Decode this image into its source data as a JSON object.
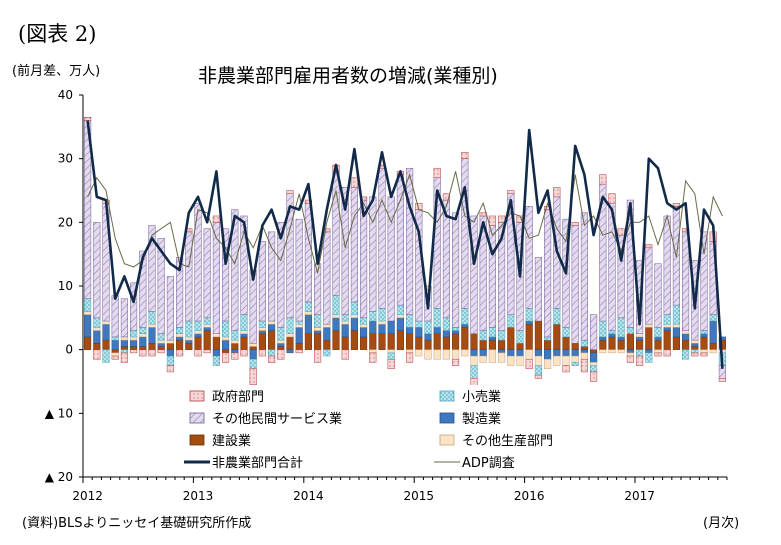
{
  "figure_label": "(図表 2)",
  "source_note": "(資料)BLSよりニッセイ基礎研究所作成",
  "colors": {
    "government": "#f6d7d7",
    "retail": "#b7e4ec",
    "other_services": "#d9cbe8",
    "manufacturing": "#3f78bf",
    "construction": "#a64b12",
    "other_goods": "#fbe3c8",
    "total_line": "#122a4a",
    "adp_line": "#6a6a4a"
  },
  "chart_data": {
    "type": "bar",
    "title": "非農業部門雇用者数の増減(業種別)",
    "ylabel": "(前月差、万人)",
    "xlabel": "(月次)",
    "ylim": [
      -20,
      40
    ],
    "yticks": [
      40,
      30,
      20,
      10,
      0,
      -10,
      -20
    ],
    "ytick_labels": [
      "40",
      "30",
      "20",
      "10",
      "0",
      "▲ 10",
      "▲ 20"
    ],
    "x_tick_labels": [
      "2012",
      "2013",
      "2014",
      "2015",
      "2016",
      "2017"
    ],
    "grid": false,
    "legend_placement": "bottom-center",
    "months": 70,
    "series": [
      {
        "name": "政府部門",
        "key": "government",
        "kind": "bar",
        "values": [
          0.5,
          -1.5,
          0.5,
          -0.5,
          -1.5,
          -0.5,
          -1.0,
          -1.0,
          -0.5,
          -1.0,
          -1.0,
          0.5,
          -1.0,
          -0.5,
          1.0,
          -1.5,
          -1.0,
          -1.0,
          -2.5,
          -1.0,
          -1.0,
          -1.5,
          0.5,
          -0.5,
          0.5,
          -2.0,
          0.5,
          1.0,
          -1.5,
          1.5,
          0.5,
          -1.5,
          0.5,
          -1.5,
          0.5,
          -1.5,
          1.0,
          0.5,
          1.5,
          1.0,
          -1.0,
          1.0,
          -1.5,
          0.5,
          1.5,
          1.0,
          0.5,
          1.0,
          -1.5,
          -0.5,
          0.5,
          1.5,
          -1.0,
          0.5,
          -2.0,
          -1.5,
          1.5,
          1.5,
          1.0,
          -1.0,
          -1.5,
          0.5,
          -0.5,
          -1.0,
          0.5,
          0.5,
          -0.5,
          -0.5,
          1.5,
          -0.5
        ]
      },
      {
        "name": "小売業",
        "key": "retail",
        "kind": "bar",
        "values": [
          2.0,
          1.5,
          -2.0,
          0.5,
          -0.5,
          1.0,
          1.0,
          2.0,
          1.0,
          -1.5,
          1.0,
          2.5,
          1.5,
          1.0,
          -1.5,
          2.5,
          1.5,
          2.5,
          -1.5,
          1.0,
          -1.0,
          2.0,
          2.5,
          0.5,
          1.5,
          2.0,
          -1.0,
          3.0,
          1.0,
          2.0,
          1.0,
          1.5,
          2.0,
          -1.0,
          1.5,
          2.0,
          1.0,
          2.0,
          3.0,
          2.0,
          0.5,
          2.5,
          -2.0,
          1.5,
          1.5,
          1.5,
          2.0,
          2.0,
          2.0,
          -1.5,
          0.5,
          2.5,
          1.5,
          -0.5,
          1.0,
          -1.0,
          2.5,
          0.5,
          3.0,
          1.0,
          -1.0,
          -1.5,
          1.5,
          1.5,
          3.0,
          -1.5,
          -0.5,
          0.5,
          1.0,
          -2.0
        ]
      },
      {
        "name": "その他民間サービス業",
        "key": "other_services",
        "kind": "bar",
        "values": [
          28.0,
          15.0,
          18.5,
          6.5,
          6.0,
          7.5,
          12.0,
          13.5,
          15.0,
          10.0,
          11.0,
          14.0,
          18.5,
          14.0,
          17.5,
          14.5,
          19.0,
          15.5,
          11.5,
          12.5,
          14.0,
          16.5,
          19.5,
          16.0,
          15.5,
          8.0,
          14.5,
          19.5,
          20.0,
          18.0,
          18.5,
          18.0,
          22.0,
          19.5,
          20.5,
          23.0,
          17.5,
          5.0,
          20.5,
          18.5,
          18.0,
          23.5,
          18.5,
          18.0,
          16.0,
          17.0,
          19.0,
          17.0,
          16.0,
          10.0,
          20.0,
          17.5,
          17.0,
          18.5,
          20.0,
          5.5,
          21.5,
          20.0,
          13.0,
          20.0,
          11.5,
          12.0,
          10.0,
          15.5,
          15.5,
          15.5,
          12.5,
          15.5,
          11.5,
          -2.0
        ]
      },
      {
        "name": "製造業",
        "key": "manufacturing",
        "kind": "bar",
        "values": [
          3.5,
          2.0,
          2.5,
          1.5,
          1.0,
          1.0,
          1.5,
          2.5,
          0.5,
          -1.0,
          0.5,
          0.5,
          0.5,
          0.5,
          -1.0,
          1.5,
          -0.5,
          0.5,
          -1.5,
          0.5,
          1.0,
          0.5,
          -0.5,
          2.5,
          3.0,
          0.5,
          2.0,
          2.0,
          2.0,
          2.0,
          1.5,
          2.0,
          1.5,
          2.0,
          2.0,
          1.0,
          1.5,
          1.0,
          1.0,
          1.0,
          0.5,
          0.5,
          -1.0,
          -1.0,
          0.5,
          -0.5,
          -1.0,
          -1.0,
          0.5,
          -1.0,
          -1.5,
          -1.0,
          -1.0,
          -1.0,
          -0.5,
          -1.5,
          0.5,
          0.5,
          0.5,
          -0.5,
          0.5,
          -0.5,
          0.5,
          0.5,
          1.5,
          1.0,
          0.5,
          0.5,
          3.5,
          0.5
        ]
      },
      {
        "name": "建設業",
        "key": "construction",
        "kind": "bar",
        "values": [
          2.0,
          1.0,
          1.5,
          -0.5,
          0.5,
          0.5,
          0.5,
          1.0,
          0.5,
          1.0,
          1.5,
          1.0,
          2.0,
          3.0,
          2.0,
          -0.5,
          1.0,
          2.0,
          0.5,
          2.5,
          3.0,
          0.5,
          2.0,
          1.0,
          2.5,
          2.5,
          1.5,
          3.0,
          2.0,
          3.0,
          2.0,
          2.5,
          2.5,
          2.5,
          3.0,
          2.5,
          2.0,
          1.5,
          2.5,
          2.0,
          2.5,
          3.5,
          2.5,
          1.5,
          1.5,
          1.5,
          3.5,
          1.0,
          4.0,
          4.5,
          1.5,
          4.0,
          2.0,
          1.0,
          0.5,
          -0.5,
          1.5,
          2.0,
          1.5,
          2.5,
          1.5,
          3.5,
          1.5,
          3.0,
          2.0,
          1.5,
          0.5,
          2.0,
          1.0,
          1.5
        ]
      },
      {
        "name": "その他生産部門",
        "key": "other_goods",
        "kind": "bar",
        "values": [
          0.5,
          0.5,
          0.5,
          -0.5,
          0.5,
          0.5,
          0.5,
          0.5,
          0.5,
          0.5,
          0.5,
          0.5,
          0.5,
          0.5,
          0.5,
          0.5,
          0.5,
          0.5,
          0.5,
          0.5,
          0.5,
          0.5,
          0.5,
          0.5,
          0.5,
          0.5,
          0.5,
          0.5,
          0.5,
          0.5,
          0.5,
          -0.5,
          0.5,
          -0.5,
          0.5,
          -0.5,
          -1.0,
          -1.5,
          -1.5,
          -1.5,
          -1.5,
          -1.0,
          -1.5,
          -1.0,
          -2.0,
          -1.5,
          -1.5,
          -1.5,
          -1.5,
          -1.5,
          -1.5,
          -1.5,
          -1.5,
          -1.0,
          -1.0,
          -0.5,
          -0.5,
          -0.5,
          -0.5,
          -0.5,
          0.5,
          0.5,
          -0.5,
          0.5,
          0.5,
          0.5,
          0.5,
          -0.5,
          -0.5,
          -0.5
        ]
      },
      {
        "name": "非農業部門合計",
        "key": "total_line",
        "kind": "line",
        "values": [
          36.0,
          24.0,
          23.5,
          8.0,
          11.5,
          7.5,
          14.5,
          17.5,
          15.5,
          13.5,
          12.5,
          21.5,
          24.0,
          20.0,
          28.0,
          13.5,
          21.0,
          20.0,
          11.0,
          19.5,
          22.0,
          17.5,
          22.5,
          22.0,
          26.0,
          13.5,
          22.0,
          29.0,
          22.0,
          31.5,
          21.0,
          23.5,
          31.0,
          24.0,
          28.0,
          22.5,
          18.5,
          6.5,
          25.0,
          21.0,
          20.5,
          25.5,
          13.5,
          20.0,
          15.0,
          17.5,
          23.5,
          11.5,
          34.5,
          21.5,
          25.0,
          15.5,
          12.0,
          32.0,
          27.5,
          18.0,
          24.0,
          22.0,
          14.0,
          23.0,
          4.0,
          30.0,
          28.5,
          23.0,
          22.0,
          23.0,
          6.5,
          22.0,
          19.5,
          -3.0
        ]
      },
      {
        "name": "ADP調査",
        "key": "adp_line",
        "kind": "line",
        "values": [
          24.0,
          27.0,
          25.0,
          17.5,
          13.5,
          13.0,
          14.0,
          18.0,
          19.0,
          20.0,
          13.5,
          13.0,
          22.0,
          21.5,
          17.5,
          16.0,
          13.5,
          18.5,
          16.0,
          19.5,
          16.0,
          14.0,
          19.0,
          24.5,
          17.5,
          12.0,
          20.0,
          25.0,
          16.0,
          21.0,
          23.0,
          20.0,
          23.5,
          20.0,
          23.5,
          27.5,
          22.0,
          21.5,
          20.0,
          22.5,
          28.0,
          21.0,
          20.0,
          23.0,
          18.0,
          19.5,
          21.5,
          21.0,
          17.5,
          18.0,
          23.0,
          19.0,
          17.0,
          27.5,
          19.5,
          21.0,
          18.0,
          18.5,
          15.5,
          20.0,
          20.0,
          21.0,
          16.5,
          21.0,
          14.5,
          26.5,
          24.5,
          15.0,
          24.0,
          21.0
        ]
      }
    ]
  }
}
